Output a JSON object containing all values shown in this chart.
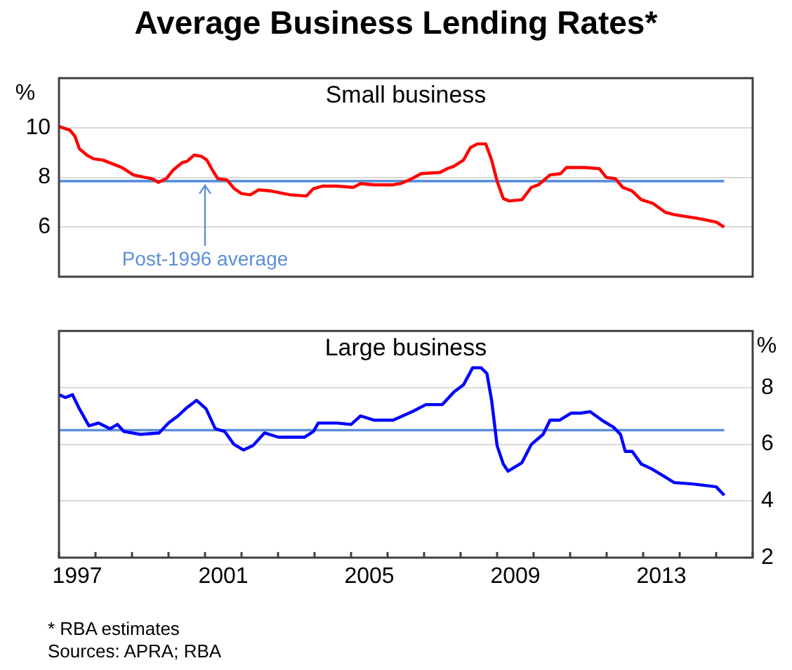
{
  "chart_data": [
    {
      "type": "line",
      "title": "Average Business Lending Rates*",
      "subtitle": "Small business",
      "ylabel": "%",
      "xlim": [
        1997,
        2016
      ],
      "ylim": [
        4,
        12
      ],
      "yticks": [
        6,
        8,
        10
      ],
      "tick_labels": "y",
      "grid": "y",
      "series": [
        {
          "color": "#ff0000",
          "x": [
            1997.0,
            1997.3,
            1997.44,
            1997.56,
            1997.76,
            1997.95,
            1998.2,
            1998.46,
            1998.72,
            1999.04,
            1999.36,
            1999.55,
            1999.72,
            1999.94,
            2000.13,
            2000.38,
            2000.51,
            2000.7,
            2000.9,
            2001.05,
            2001.22,
            2001.35,
            2001.6,
            2001.8,
            2002.0,
            2002.24,
            2002.47,
            2002.82,
            2003.33,
            2003.78,
            2003.97,
            2004.23,
            2004.6,
            2005.06,
            2005.26,
            2005.64,
            2006.15,
            2006.35,
            2006.6,
            2006.92,
            2007.44,
            2007.63,
            2007.82,
            2008.08,
            2008.27,
            2008.46,
            2008.69,
            2008.85,
            2009.0,
            2009.17,
            2009.33,
            2009.68,
            2009.94,
            2010.13,
            2010.45,
            2010.74,
            2010.9,
            2011.41,
            2011.8,
            2011.99,
            2012.24,
            2012.44,
            2012.7,
            2012.95,
            2013.27,
            2013.6,
            2013.85,
            2014.49,
            2015.0,
            2015.22
          ],
          "values": [
            10.05,
            9.9,
            9.65,
            9.15,
            8.9,
            8.75,
            8.7,
            8.55,
            8.4,
            8.1,
            8.0,
            7.95,
            7.8,
            7.95,
            8.3,
            8.6,
            8.65,
            8.9,
            8.85,
            8.7,
            8.25,
            7.95,
            7.9,
            7.55,
            7.35,
            7.3,
            7.5,
            7.45,
            7.3,
            7.25,
            7.55,
            7.65,
            7.65,
            7.6,
            7.75,
            7.7,
            7.7,
            7.75,
            7.9,
            8.15,
            8.2,
            8.35,
            8.45,
            8.7,
            9.2,
            9.35,
            9.35,
            8.7,
            7.85,
            7.15,
            7.05,
            7.1,
            7.6,
            7.7,
            8.1,
            8.15,
            8.4,
            8.4,
            8.35,
            8.0,
            7.95,
            7.6,
            7.45,
            7.1,
            6.95,
            6.6,
            6.5,
            6.35,
            6.2,
            6.0
          ]
        }
      ],
      "ref_lines": [
        {
          "axis": "y",
          "value": 7.85,
          "color": "#5b8fd9"
        }
      ],
      "annotations": [
        {
          "text": "Post-1996 average",
          "x": 2001,
          "y": 7.85
        }
      ]
    },
    {
      "type": "line",
      "title": "Large business",
      "ylabel": "%",
      "xlim": [
        1997,
        2016
      ],
      "ylim": [
        2,
        10
      ],
      "yticks": [
        2,
        4,
        6,
        8
      ],
      "grid": "y",
      "xticks": [
        {
          "value": 1997,
          "label": null
        },
        {
          "value": 1997.5,
          "label": "1997"
        },
        {
          "value": 1998,
          "label": null
        },
        {
          "value": 1999,
          "label": null
        },
        {
          "value": 2000,
          "label": null
        },
        {
          "value": 2001,
          "label": null
        },
        {
          "value": 2001.5,
          "label": "2001"
        },
        {
          "value": 2002,
          "label": null
        },
        {
          "value": 2003,
          "label": null
        },
        {
          "value": 2004,
          "label": null
        },
        {
          "value": 2005,
          "label": null
        },
        {
          "value": 2005.5,
          "label": "2005"
        },
        {
          "value": 2006,
          "label": null
        },
        {
          "value": 2007,
          "label": null
        },
        {
          "value": 2008,
          "label": null
        },
        {
          "value": 2009,
          "label": null
        },
        {
          "value": 2009.5,
          "label": "2009"
        },
        {
          "value": 2010,
          "label": null
        },
        {
          "value": 2011,
          "label": null
        },
        {
          "value": 2012,
          "label": null
        },
        {
          "value": 2013,
          "label": null
        },
        {
          "value": 2013.5,
          "label": "2013"
        },
        {
          "value": 2014,
          "label": null
        },
        {
          "value": 2015,
          "label": null
        },
        {
          "value": 2016,
          "label": null
        }
      ],
      "series": [
        {
          "color": "#0000ff",
          "x": [
            1997.0,
            1997.18,
            1997.37,
            1997.56,
            1997.82,
            1998.08,
            1998.4,
            1998.6,
            1998.78,
            1999.23,
            1999.74,
            2000.0,
            2000.26,
            2000.51,
            2000.77,
            2001.03,
            2001.28,
            2001.54,
            2001.79,
            2002.05,
            2002.31,
            2002.63,
            2003.01,
            2003.46,
            2003.72,
            2003.97,
            2004.1,
            2004.62,
            2005.0,
            2005.26,
            2005.64,
            2006.15,
            2006.67,
            2007.05,
            2007.5,
            2007.82,
            2008.08,
            2008.33,
            2008.56,
            2008.72,
            2008.85,
            2009.0,
            2009.17,
            2009.3,
            2009.49,
            2009.68,
            2009.94,
            2010.26,
            2010.45,
            2010.71,
            2011.03,
            2011.29,
            2011.55,
            2011.87,
            2012.19,
            2012.38,
            2012.51,
            2012.7,
            2012.95,
            2013.21,
            2013.53,
            2013.85,
            2014.36,
            2015.0,
            2015.22
          ],
          "values": [
            7.75,
            7.65,
            7.75,
            7.25,
            6.65,
            6.75,
            6.55,
            6.7,
            6.45,
            6.35,
            6.4,
            6.75,
            7.0,
            7.3,
            7.55,
            7.25,
            6.55,
            6.45,
            6.0,
            5.8,
            5.95,
            6.4,
            6.25,
            6.25,
            6.25,
            6.45,
            6.75,
            6.75,
            6.7,
            7.0,
            6.85,
            6.85,
            7.15,
            7.4,
            7.4,
            7.85,
            8.1,
            8.7,
            8.7,
            8.5,
            7.55,
            5.95,
            5.3,
            5.05,
            5.2,
            5.35,
            6.0,
            6.35,
            6.85,
            6.85,
            7.1,
            7.1,
            7.15,
            6.85,
            6.6,
            6.35,
            5.75,
            5.75,
            5.3,
            5.15,
            4.9,
            4.65,
            4.6,
            4.5,
            4.2
          ]
        }
      ],
      "ref_lines": [
        {
          "axis": "y",
          "value": 6.5,
          "color": "#5b8fd9"
        }
      ],
      "annotations": [
        "* RBA estimates",
        "Sources: APRA; RBA"
      ]
    }
  ]
}
